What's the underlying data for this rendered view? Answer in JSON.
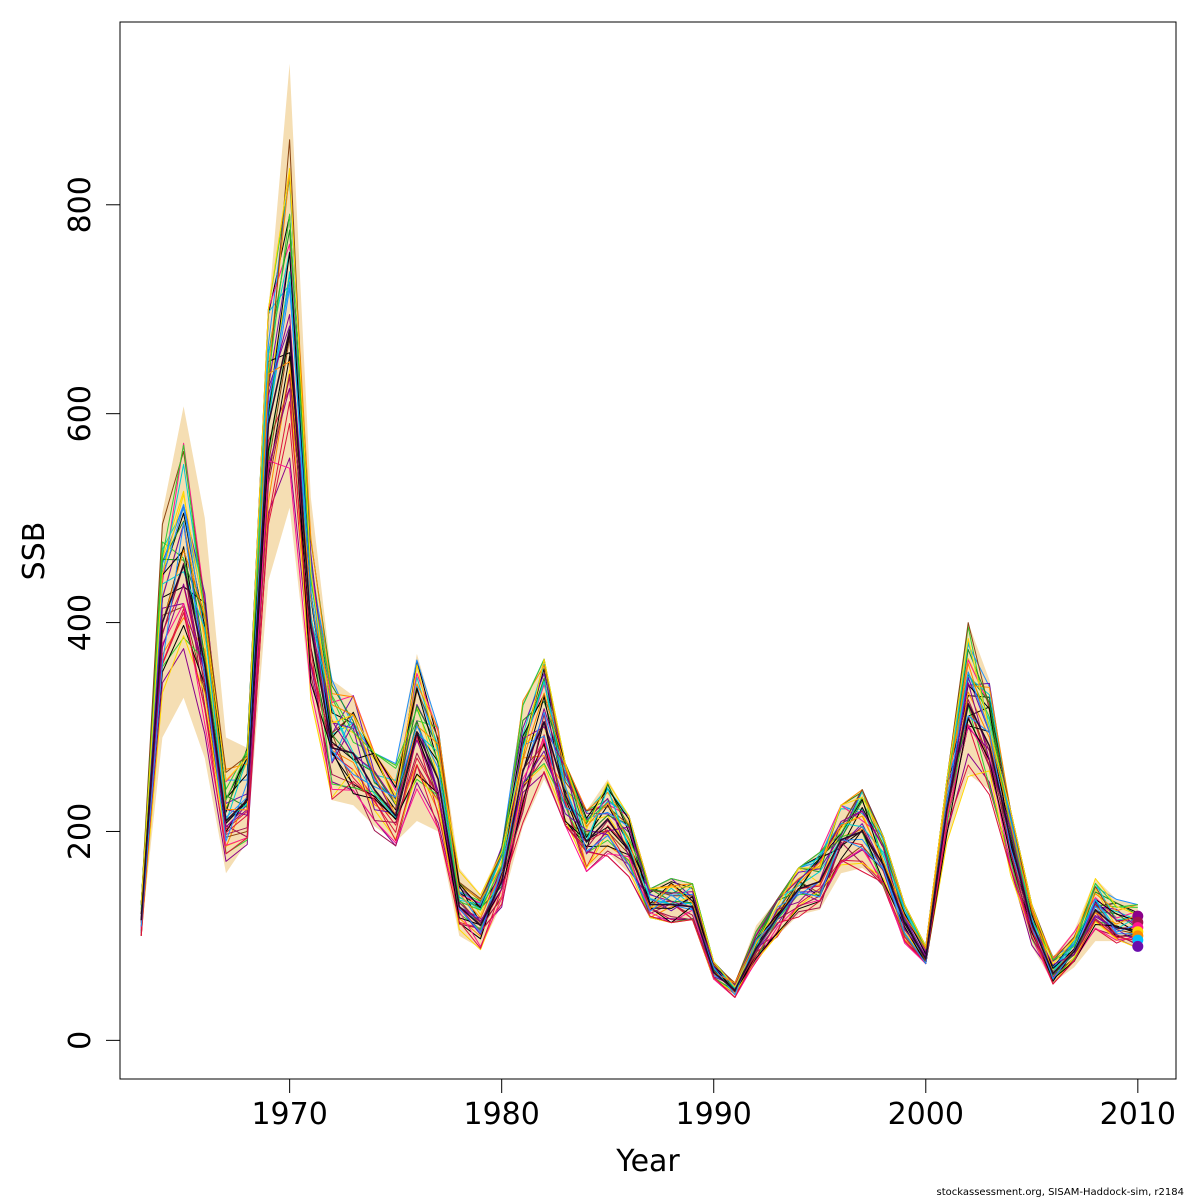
{
  "chart_data": {
    "type": "line",
    "xlabel": "Year",
    "ylabel": "SSB",
    "xlim": [
      1962,
      2011.8
    ],
    "ylim": [
      -37,
      975
    ],
    "x_ticks": [
      1970,
      1980,
      1990,
      2000,
      2010
    ],
    "y_ticks": [
      0,
      200,
      400,
      600,
      800
    ],
    "band_color": "#f5deb3",
    "point_colors": [
      "#8b008b",
      "#a0154f",
      "#ff1493",
      "#ffd700",
      "#ff8c00",
      "#00bfff",
      "#6a0dad"
    ],
    "years": [
      1963,
      1964,
      1965,
      1966,
      1967,
      1968,
      1969,
      1970,
      1971,
      1972,
      1973,
      1974,
      1975,
      1976,
      1977,
      1978,
      1979,
      1980,
      1981,
      1982,
      1983,
      1984,
      1985,
      1986,
      1987,
      1988,
      1989,
      1990,
      1991,
      1992,
      1993,
      1994,
      1995,
      1996,
      1997,
      1998,
      1999,
      2000,
      2001,
      2002,
      2003,
      2004,
      2005,
      2006,
      2007,
      2008,
      2009,
      2010
    ],
    "band": {
      "lower": [
        102,
        290,
        328,
        270,
        160,
        190,
        440,
        510,
        330,
        230,
        225,
        205,
        190,
        210,
        200,
        100,
        88,
        130,
        205,
        250,
        210,
        165,
        180,
        160,
        120,
        115,
        118,
        60,
        42,
        75,
        100,
        120,
        125,
        160,
        165,
        150,
        95,
        75,
        190,
        255,
        240,
        160,
        90,
        55,
        70,
        95,
        95,
        90
      ],
      "upper": [
        130,
        505,
        607,
        500,
        290,
        280,
        700,
        935,
        520,
        345,
        330,
        275,
        265,
        370,
        300,
        165,
        140,
        185,
        325,
        365,
        265,
        220,
        250,
        215,
        145,
        155,
        150,
        75,
        55,
        110,
        135,
        165,
        180,
        225,
        240,
        195,
        130,
        90,
        250,
        400,
        345,
        220,
        130,
        80,
        105,
        155,
        135,
        130
      ]
    },
    "median": [
      115,
      400,
      455,
      360,
      210,
      230,
      590,
      680,
      395,
      280,
      275,
      240,
      215,
      295,
      250,
      128,
      110,
      152,
      258,
      305,
      235,
      190,
      212,
      182,
      130,
      130,
      128,
      65,
      48,
      88,
      118,
      145,
      152,
      192,
      200,
      168,
      112,
      78,
      222,
      322,
      282,
      192,
      112,
      64,
      85,
      125,
      108,
      105
    ],
    "runs": 36,
    "final_points": [
      119,
      113,
      108,
      104,
      100,
      96,
      90
    ]
  },
  "footer": {
    "source": "stockassessment.org, SISAM-Haddock-sim, r2184"
  }
}
